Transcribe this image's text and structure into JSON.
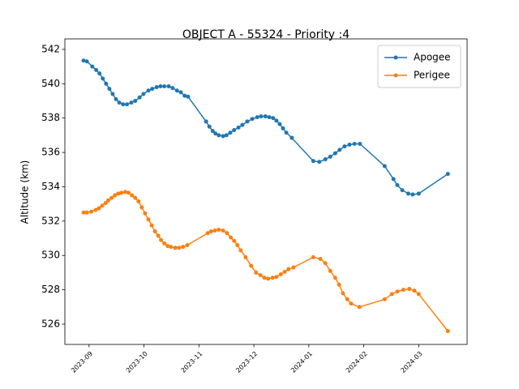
{
  "chart_data": {
    "type": "line",
    "title": "OBJECT A - 55324 - Priority :4",
    "y_label": "Altitude (km)",
    "xlim": [
      -0.44,
      6.88
    ],
    "xticks": [
      {
        "value": 0,
        "label": "2023-09"
      },
      {
        "value": 1,
        "label": "2023-10"
      },
      {
        "value": 2,
        "label": "2023-11"
      },
      {
        "value": 3,
        "label": "2023-12"
      },
      {
        "value": 4,
        "label": "2024-01"
      },
      {
        "value": 5,
        "label": "2024-02"
      },
      {
        "value": 6,
        "label": "2024-03"
      }
    ],
    "ylim": [
      524.82,
      542.61
    ],
    "yticks": [
      526,
      528,
      530,
      532,
      534,
      536,
      538,
      540,
      542
    ],
    "legend": "upper right",
    "series": [
      {
        "name": "Apogee",
        "color": "#1f77b4",
        "x": [
          -0.1,
          -0.04,
          0.06,
          0.13,
          0.19,
          0.25,
          0.31,
          0.37,
          0.43,
          0.49,
          0.55,
          0.62,
          0.69,
          0.77,
          0.84,
          0.92,
          0.99,
          1.08,
          1.15,
          1.23,
          1.3,
          1.37,
          1.45,
          1.52,
          1.6,
          1.67,
          1.74,
          1.8,
          2.13,
          2.19,
          2.25,
          2.3,
          2.36,
          2.44,
          2.5,
          2.57,
          2.64,
          2.72,
          2.79,
          2.88,
          2.97,
          3.06,
          3.13,
          3.21,
          3.28,
          3.35,
          3.41,
          3.47,
          3.53,
          3.59,
          3.69,
          4.08,
          4.19,
          4.3,
          4.39,
          4.48,
          4.56,
          4.65,
          4.74,
          4.83,
          4.93,
          5.38,
          5.54,
          5.61,
          5.7,
          5.81,
          5.89,
          6.0,
          6.53
        ],
        "values": [
          541.35,
          541.3,
          541.0,
          540.8,
          540.6,
          540.3,
          540.0,
          539.7,
          539.4,
          539.1,
          538.9,
          538.8,
          538.8,
          538.9,
          539.0,
          539.2,
          539.4,
          539.6,
          539.7,
          539.8,
          539.85,
          539.85,
          539.85,
          539.75,
          539.6,
          539.5,
          539.3,
          539.25,
          537.8,
          537.5,
          537.25,
          537.1,
          537.0,
          536.95,
          537.0,
          537.15,
          537.3,
          537.45,
          537.6,
          537.8,
          537.95,
          538.05,
          538.1,
          538.1,
          538.05,
          538.0,
          537.85,
          537.65,
          537.4,
          537.15,
          536.85,
          535.5,
          535.45,
          535.6,
          535.75,
          535.95,
          536.15,
          536.35,
          536.45,
          536.5,
          536.5,
          535.2,
          534.45,
          534.1,
          533.8,
          533.6,
          533.55,
          533.6,
          534.75
        ]
      },
      {
        "name": "Perigee",
        "color": "#ff7f0e",
        "x": [
          -0.1,
          -0.04,
          0.04,
          0.12,
          0.18,
          0.24,
          0.3,
          0.35,
          0.41,
          0.47,
          0.53,
          0.59,
          0.66,
          0.72,
          0.78,
          0.84,
          0.9,
          0.96,
          1.02,
          1.08,
          1.14,
          1.2,
          1.26,
          1.31,
          1.37,
          1.43,
          1.49,
          1.57,
          1.64,
          1.71,
          1.79,
          2.16,
          2.22,
          2.29,
          2.36,
          2.44,
          2.51,
          2.58,
          2.64,
          2.7,
          2.76,
          2.85,
          2.95,
          3.04,
          3.12,
          3.19,
          3.26,
          3.34,
          3.41,
          3.49,
          3.56,
          3.63,
          3.72,
          4.08,
          4.21,
          4.3,
          4.39,
          4.48,
          4.55,
          4.62,
          4.7,
          4.77,
          4.92,
          5.38,
          5.51,
          5.61,
          5.72,
          5.83,
          5.92,
          6.0,
          6.53
        ],
        "values": [
          532.5,
          532.5,
          532.55,
          532.65,
          532.75,
          532.9,
          533.05,
          533.2,
          533.35,
          533.5,
          533.6,
          533.65,
          533.7,
          533.65,
          533.5,
          533.35,
          533.15,
          532.8,
          532.45,
          532.1,
          531.75,
          531.4,
          531.15,
          530.9,
          530.7,
          530.55,
          530.5,
          530.45,
          530.45,
          530.5,
          530.6,
          531.3,
          531.4,
          531.45,
          531.5,
          531.45,
          531.3,
          531.05,
          530.85,
          530.6,
          530.3,
          529.9,
          529.4,
          529.0,
          528.85,
          528.7,
          528.65,
          528.7,
          528.75,
          528.9,
          529.05,
          529.2,
          529.3,
          529.9,
          529.8,
          529.55,
          529.1,
          528.7,
          528.3,
          527.8,
          527.45,
          527.2,
          527.0,
          527.45,
          527.75,
          527.9,
          528.0,
          528.05,
          527.95,
          527.75,
          525.6
        ]
      }
    ]
  }
}
